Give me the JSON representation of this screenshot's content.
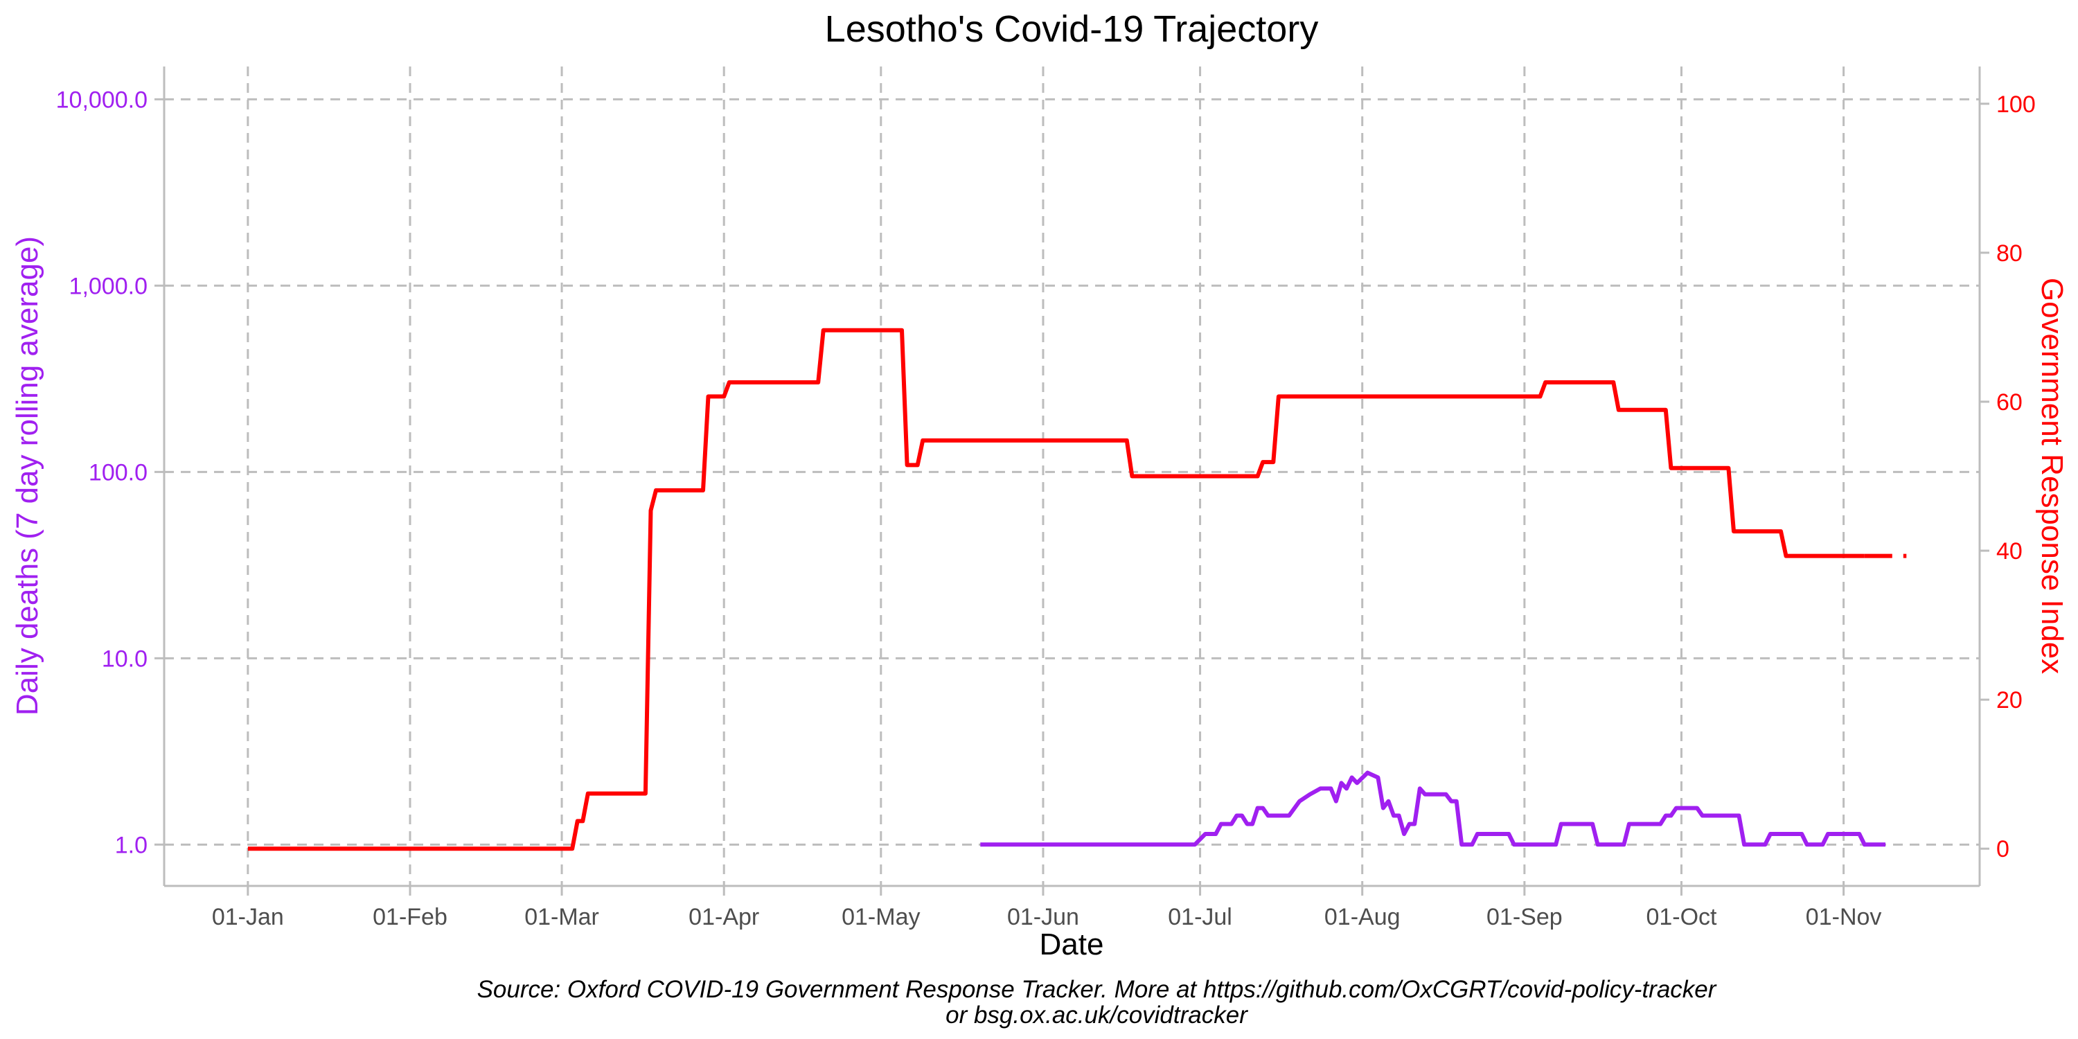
{
  "chart_data": {
    "type": "line",
    "title": "Lesotho's Covid-19 Trajectory",
    "xlabel": "Date",
    "ylabel_left": "Daily deaths (7 day rolling average)",
    "ylabel_right": "Government Response Index",
    "caption_line1": "Source: Oxford COVID-19 Government Response Tracker. More at https://github.com/OxCGRT/covid-policy-tracker",
    "caption_line2": "or bsg.ox.ac.uk/covidtracker",
    "x_ticks": [
      "01-Jan",
      "01-Feb",
      "01-Mar",
      "01-Apr",
      "01-May",
      "01-Jun",
      "01-Jul",
      "01-Aug",
      "01-Sep",
      "01-Oct",
      "01-Nov"
    ],
    "x_tick_dates": [
      "2020-01-01",
      "2020-02-01",
      "2020-03-01",
      "2020-04-01",
      "2020-05-01",
      "2020-06-01",
      "2020-07-01",
      "2020-08-01",
      "2020-09-01",
      "2020-10-01",
      "2020-11-01"
    ],
    "xlim": [
      "2019-12-16",
      "2020-11-27"
    ],
    "left_axis": {
      "scale": "log10",
      "ylim": [
        0.6,
        15000
      ],
      "ticks": [
        1,
        10,
        100,
        1000,
        10000
      ],
      "tick_labels": [
        "1.0",
        "10.0",
        "100.0",
        "1,000.0",
        "10,000.0"
      ],
      "color": "#A020F0"
    },
    "right_axis": {
      "scale": "linear",
      "ylim": [
        -5,
        105
      ],
      "ticks": [
        0,
        20,
        40,
        60,
        80,
        100
      ],
      "tick_labels": [
        "0",
        "20",
        "40",
        "60",
        "80",
        "100"
      ],
      "color": "#FF0000"
    },
    "grid": true,
    "series": [
      {
        "name": "Daily deaths (7 day rolling average)",
        "axis": "left",
        "color": "#A020F0",
        "points": [
          [
            "2020-05-20",
            1.0
          ],
          [
            "2020-06-30",
            1.0
          ],
          [
            "2020-07-02",
            1.14
          ],
          [
            "2020-07-04",
            1.14
          ],
          [
            "2020-07-05",
            1.29
          ],
          [
            "2020-07-07",
            1.29
          ],
          [
            "2020-07-08",
            1.43
          ],
          [
            "2020-07-09",
            1.43
          ],
          [
            "2020-07-10",
            1.29
          ],
          [
            "2020-07-11",
            1.29
          ],
          [
            "2020-07-12",
            1.57
          ],
          [
            "2020-07-13",
            1.57
          ],
          [
            "2020-07-14",
            1.43
          ],
          [
            "2020-07-18",
            1.43
          ],
          [
            "2020-07-20",
            1.71
          ],
          [
            "2020-07-22",
            1.86
          ],
          [
            "2020-07-24",
            2.0
          ],
          [
            "2020-07-26",
            2.0
          ],
          [
            "2020-07-27",
            1.71
          ],
          [
            "2020-07-28",
            2.14
          ],
          [
            "2020-07-29",
            2.0
          ],
          [
            "2020-07-30",
            2.29
          ],
          [
            "2020-07-31",
            2.14
          ],
          [
            "2020-08-02",
            2.43
          ],
          [
            "2020-08-04",
            2.29
          ],
          [
            "2020-08-05",
            1.57
          ],
          [
            "2020-08-06",
            1.71
          ],
          [
            "2020-08-07",
            1.43
          ],
          [
            "2020-08-08",
            1.43
          ],
          [
            "2020-08-09",
            1.14
          ],
          [
            "2020-08-10",
            1.29
          ],
          [
            "2020-08-11",
            1.29
          ],
          [
            "2020-08-12",
            2.0
          ],
          [
            "2020-08-13",
            1.86
          ],
          [
            "2020-08-17",
            1.86
          ],
          [
            "2020-08-18",
            1.71
          ],
          [
            "2020-08-19",
            1.71
          ],
          [
            "2020-08-20",
            1.0
          ],
          [
            "2020-08-22",
            1.0
          ],
          [
            "2020-08-23",
            1.14
          ],
          [
            "2020-08-29",
            1.14
          ],
          [
            "2020-08-30",
            1.0
          ],
          [
            "2020-09-07",
            1.0
          ],
          [
            "2020-09-08",
            1.29
          ],
          [
            "2020-09-14",
            1.29
          ],
          [
            "2020-09-15",
            1.0
          ],
          [
            "2020-09-20",
            1.0
          ],
          [
            "2020-09-21",
            1.29
          ],
          [
            "2020-09-27",
            1.29
          ],
          [
            "2020-09-28",
            1.43
          ],
          [
            "2020-09-29",
            1.43
          ],
          [
            "2020-09-30",
            1.57
          ],
          [
            "2020-10-04",
            1.57
          ],
          [
            "2020-10-05",
            1.43
          ],
          [
            "2020-10-12",
            1.43
          ],
          [
            "2020-10-13",
            1.0
          ],
          [
            "2020-10-17",
            1.0
          ],
          [
            "2020-10-18",
            1.14
          ],
          [
            "2020-10-24",
            1.14
          ],
          [
            "2020-10-25",
            1.0
          ],
          [
            "2020-10-28",
            1.0
          ],
          [
            "2020-10-29",
            1.14
          ],
          [
            "2020-11-04",
            1.14
          ],
          [
            "2020-11-05",
            1.0
          ],
          [
            "2020-11-09",
            1.0
          ]
        ]
      },
      {
        "name": "Government Response Index",
        "axis": "right",
        "color": "#FF0000",
        "points": [
          [
            "2020-01-01",
            0
          ],
          [
            "2020-03-03",
            0
          ],
          [
            "2020-03-04",
            3.7
          ],
          [
            "2020-03-05",
            3.7
          ],
          [
            "2020-03-06",
            7.4
          ],
          [
            "2020-03-17",
            7.4
          ],
          [
            "2020-03-18",
            45.4
          ],
          [
            "2020-03-19",
            48.1
          ],
          [
            "2020-03-28",
            48.1
          ],
          [
            "2020-03-29",
            60.7
          ],
          [
            "2020-04-01",
            60.7
          ],
          [
            "2020-04-02",
            62.6
          ],
          [
            "2020-04-19",
            62.6
          ],
          [
            "2020-04-20",
            69.6
          ],
          [
            "2020-05-05",
            69.6
          ],
          [
            "2020-05-06",
            51.5
          ],
          [
            "2020-05-08",
            51.5
          ],
          [
            "2020-05-09",
            54.8
          ],
          [
            "2020-06-17",
            54.8
          ],
          [
            "2020-06-18",
            50.0
          ],
          [
            "2020-07-12",
            50.0
          ],
          [
            "2020-07-13",
            51.9
          ],
          [
            "2020-07-15",
            51.9
          ],
          [
            "2020-07-16",
            60.7
          ],
          [
            "2020-09-04",
            60.7
          ],
          [
            "2020-09-05",
            62.6
          ],
          [
            "2020-09-18",
            62.6
          ],
          [
            "2020-09-19",
            58.9
          ],
          [
            "2020-09-28",
            58.9
          ],
          [
            "2020-09-29",
            51.1
          ],
          [
            "2020-10-10",
            51.1
          ],
          [
            "2020-10-11",
            42.6
          ],
          [
            "2020-10-20",
            42.6
          ],
          [
            "2020-10-21",
            39.3
          ],
          [
            "2020-11-05",
            39.3
          ]
        ]
      },
      {
        "name": "Government Response Index (extension)",
        "axis": "right",
        "color": "#FF0000",
        "dashed": true,
        "points": [
          [
            "2020-11-05",
            39.3
          ],
          [
            "2020-11-13",
            39.3
          ]
        ]
      }
    ]
  }
}
